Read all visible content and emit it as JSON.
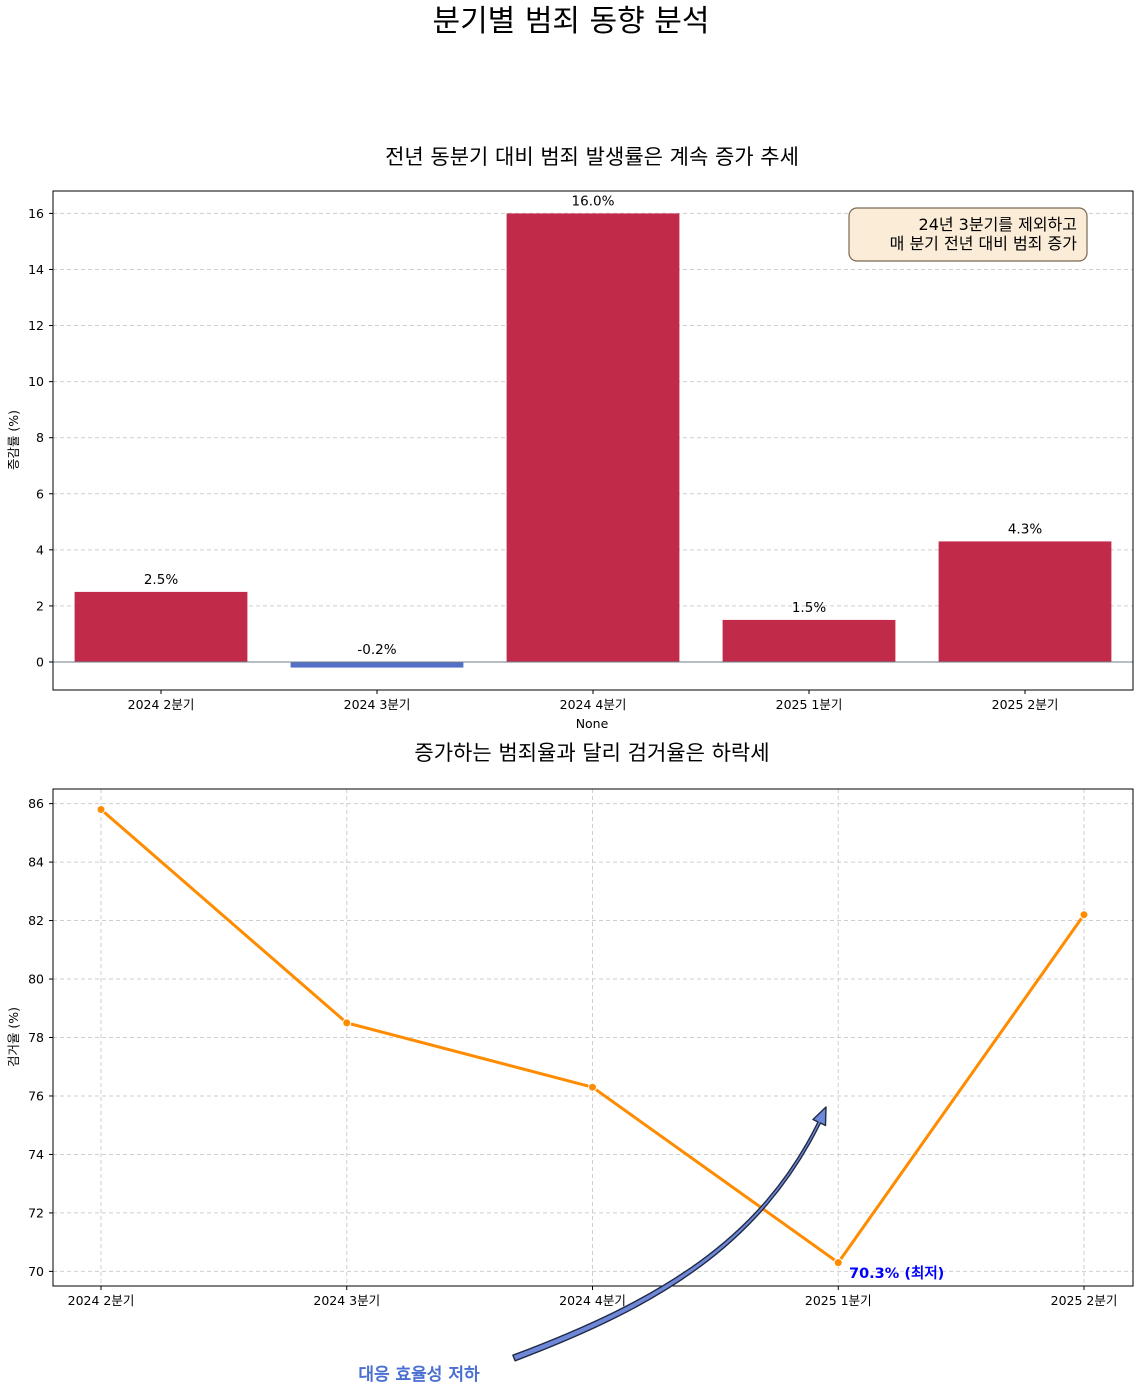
{
  "figure": {
    "suptitle": "분기별 범죄 동향 분석"
  },
  "chart_data": [
    {
      "type": "bar",
      "title": "전년 동분기 대비 범죄 발생률은 계속 증가 추세",
      "xlabel": "None",
      "ylabel": "증감률 (%)",
      "categories": [
        "2024 2분기",
        "2024 3분기",
        "2024 4분기",
        "2025 1분기",
        "2025 2분기"
      ],
      "values": [
        2.5,
        -0.2,
        16.0,
        1.5,
        4.3
      ],
      "data_labels": [
        "2.5%",
        "-0.2%",
        "16.0%",
        "1.5%",
        "4.3%"
      ],
      "ylim": [
        -1.0,
        16.8
      ],
      "yticks": [
        0,
        2,
        4,
        6,
        8,
        10,
        12,
        14,
        16
      ],
      "colors": {
        "positive": "#c22a49",
        "negative": "#5470c6"
      },
      "grid": "y",
      "annotation_box": {
        "lines": [
          "24년 3분기를 제외하고",
          "매 분기 전년 대비 범죄 증가"
        ],
        "position": "top-right"
      }
    },
    {
      "type": "line",
      "title": "증가하는 범죄율과 달리 검거율은 하락세",
      "ylabel": "검거율 (%)",
      "categories": [
        "2024 2분기",
        "2024 3분기",
        "2024 4분기",
        "2025 1분기",
        "2025 2분기"
      ],
      "values": [
        85.8,
        78.5,
        76.3,
        70.3,
        82.2
      ],
      "ylim": [
        69.5,
        86.5
      ],
      "yticks": [
        70,
        72,
        74,
        76,
        78,
        80,
        82,
        84,
        86
      ],
      "line_color": "#ff8c00",
      "grid": "both",
      "min_label": "70.3% (최저)",
      "arrow_label": "대응 효율성 저하",
      "colors": {
        "min_label": "#0000ff",
        "arrow_fill": "#6f87d8",
        "arrow_label": "#4a6fd0"
      }
    }
  ]
}
